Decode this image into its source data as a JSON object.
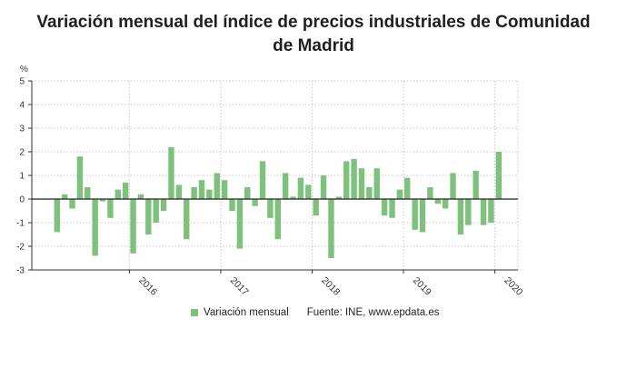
{
  "title_lines": [
    "Variación mensual del índice de precios industriales de Comunidad",
    "de Madrid"
  ],
  "legend": {
    "series_label": "Variación mensual",
    "source": "Fuente: INE, www.epdata.es"
  },
  "colors": {
    "bar": "#7dc17d",
    "axis": "#333333",
    "grid": "#c8c8c8",
    "zero": "#222222"
  },
  "chart_data": {
    "type": "bar",
    "title": "Variación mensual del índice de precios industriales de Comunidad de Madrid",
    "ylabel": "%",
    "ylim": [
      -3,
      5
    ],
    "yticks": [
      -3,
      -2,
      -1,
      0,
      1,
      2,
      3,
      4,
      5
    ],
    "grid": true,
    "x_start": "2015-01",
    "x_tick_labels": [
      {
        "label": "2016",
        "month_index": 12
      },
      {
        "label": "2017",
        "month_index": 24
      },
      {
        "label": "2018",
        "month_index": 36
      },
      {
        "label": "2019",
        "month_index": 48
      },
      {
        "label": "2020",
        "month_index": 60
      }
    ],
    "series": [
      {
        "name": "Variación mensual",
        "values": [
          0.0,
          0.0,
          -1.4,
          0.2,
          -0.4,
          1.8,
          0.5,
          -2.4,
          -0.1,
          -0.8,
          0.4,
          0.7,
          -2.3,
          0.2,
          -1.5,
          -1.0,
          -0.5,
          2.2,
          0.6,
          -1.7,
          0.5,
          0.8,
          0.4,
          1.1,
          0.8,
          -0.5,
          -2.1,
          0.5,
          -0.3,
          1.6,
          -0.8,
          -1.7,
          1.1,
          0.1,
          0.9,
          0.6,
          -0.7,
          1.0,
          -2.5,
          0.1,
          1.6,
          1.7,
          1.3,
          0.5,
          1.3,
          -0.7,
          -0.8,
          0.4,
          0.9,
          -1.3,
          -1.4,
          0.5,
          -0.2,
          -0.4,
          1.1,
          -1.5,
          -1.1,
          1.2,
          -1.1,
          -1.0,
          2.0
        ]
      }
    ]
  }
}
